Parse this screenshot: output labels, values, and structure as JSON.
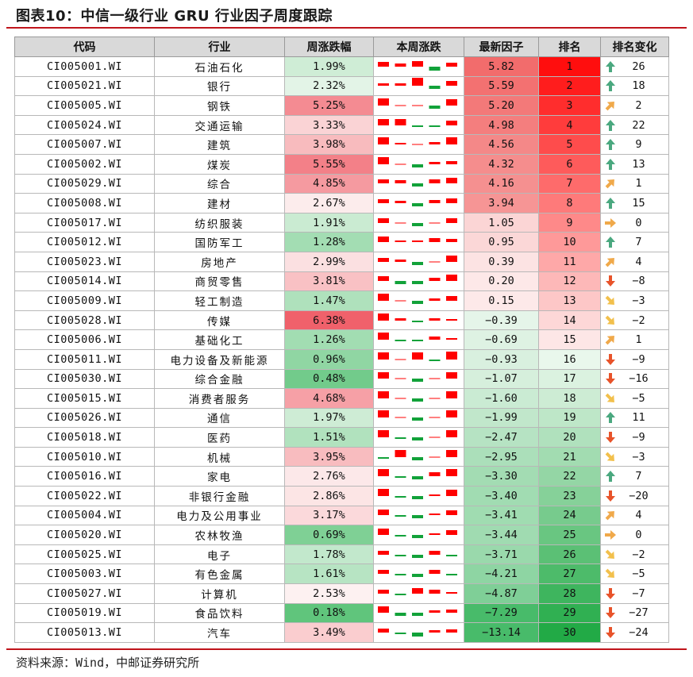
{
  "title": "图表10：中信一级行业 GRU 行业因子周度跟踪",
  "source": "资料来源：Wind，中邮证券研究所",
  "headers": [
    "代码",
    "行业",
    "周涨跌幅",
    "本周涨跌",
    "最新因子",
    "排名",
    "排名变化"
  ],
  "rows": [
    {
      "code": "CI005001.WI",
      "industry": "石油石化",
      "weekly_return": "1.99%",
      "weekly_pct": 1.99,
      "daily": [
        0.6,
        0.4,
        0.7,
        -0.5,
        0.5
      ],
      "factor": "5.82",
      "factor_val": 5.82,
      "rank": "1",
      "rank_num": 1,
      "trend": "up",
      "change": "26"
    },
    {
      "code": "CI005021.WI",
      "industry": "银行",
      "weekly_return": "2.32%",
      "weekly_pct": 2.32,
      "daily": [
        0.3,
        0.3,
        1.0,
        -0.4,
        0.6
      ],
      "factor": "5.59",
      "factor_val": 5.59,
      "rank": "2",
      "rank_num": 2,
      "trend": "up",
      "change": "18"
    },
    {
      "code": "CI005005.WI",
      "industry": "钢铁",
      "weekly_return": "5.25%",
      "weekly_pct": 5.25,
      "daily": [
        0.9,
        0.0,
        0.0,
        -0.4,
        0.8
      ],
      "factor": "5.20",
      "factor_val": 5.2,
      "rank": "3",
      "rank_num": 3,
      "trend": "up-right",
      "change": "2"
    },
    {
      "code": "CI005024.WI",
      "industry": "交通运输",
      "weekly_return": "3.33%",
      "weekly_pct": 3.33,
      "daily": [
        0.8,
        0.8,
        -0.2,
        -0.2,
        0.6
      ],
      "factor": "4.98",
      "factor_val": 4.98,
      "rank": "4",
      "rank_num": 4,
      "trend": "up",
      "change": "22"
    },
    {
      "code": "CI005007.WI",
      "industry": "建筑",
      "weekly_return": "3.98%",
      "weekly_pct": 3.98,
      "daily": [
        0.9,
        0.1,
        0.0,
        0.3,
        0.9
      ],
      "factor": "4.56",
      "factor_val": 4.56,
      "rank": "5",
      "rank_num": 5,
      "trend": "up",
      "change": "9"
    },
    {
      "code": "CI005002.WI",
      "industry": "煤炭",
      "weekly_return": "5.55%",
      "weekly_pct": 5.55,
      "daily": [
        0.9,
        0.0,
        -0.4,
        0.3,
        0.4
      ],
      "factor": "4.32",
      "factor_val": 4.32,
      "rank": "6",
      "rank_num": 6,
      "trend": "up",
      "change": "13"
    },
    {
      "code": "CI005029.WI",
      "industry": "综合",
      "weekly_return": "4.85%",
      "weekly_pct": 4.85,
      "daily": [
        0.5,
        0.4,
        -0.4,
        0.5,
        0.7
      ],
      "factor": "4.16",
      "factor_val": 4.16,
      "rank": "7",
      "rank_num": 7,
      "trend": "up-right",
      "change": "1"
    },
    {
      "code": "CI005008.WI",
      "industry": "建材",
      "weekly_return": "2.67%",
      "weekly_pct": 2.67,
      "daily": [
        0.5,
        0.3,
        -0.4,
        0.4,
        0.6
      ],
      "factor": "3.94",
      "factor_val": 3.94,
      "rank": "8",
      "rank_num": 8,
      "trend": "up",
      "change": "15"
    },
    {
      "code": "CI005017.WI",
      "industry": "纺织服装",
      "weekly_return": "1.91%",
      "weekly_pct": 1.91,
      "daily": [
        0.6,
        0.0,
        -0.4,
        0.0,
        0.6
      ],
      "factor": "1.05",
      "factor_val": 1.05,
      "rank": "9",
      "rank_num": 9,
      "trend": "right",
      "change": "0"
    },
    {
      "code": "CI005012.WI",
      "industry": "国防军工",
      "weekly_return": "1.28%",
      "weekly_pct": 1.28,
      "daily": [
        0.7,
        0.1,
        0.1,
        0.5,
        0.4
      ],
      "factor": "0.95",
      "factor_val": 0.95,
      "rank": "10",
      "rank_num": 10,
      "trend": "up",
      "change": "7"
    },
    {
      "code": "CI005023.WI",
      "industry": "房地产",
      "weekly_return": "2.99%",
      "weekly_pct": 2.99,
      "daily": [
        0.5,
        0.3,
        -0.4,
        0.0,
        0.8
      ],
      "factor": "0.39",
      "factor_val": 0.39,
      "rank": "11",
      "rank_num": 11,
      "trend": "up-right",
      "change": "4"
    },
    {
      "code": "CI005014.WI",
      "industry": "商贸零售",
      "weekly_return": "3.81%",
      "weekly_pct": 3.81,
      "daily": [
        0.6,
        -0.4,
        -0.4,
        0.4,
        0.8
      ],
      "factor": "0.20",
      "factor_val": 0.2,
      "rank": "12",
      "rank_num": 12,
      "trend": "down",
      "change": "−8"
    },
    {
      "code": "CI005009.WI",
      "industry": "轻工制造",
      "weekly_return": "1.47%",
      "weekly_pct": 1.47,
      "daily": [
        0.9,
        0.0,
        -0.4,
        0.3,
        0.6
      ],
      "factor": "0.15",
      "factor_val": 0.15,
      "rank": "13",
      "rank_num": 13,
      "trend": "down-right",
      "change": "−3"
    },
    {
      "code": "CI005028.WI",
      "industry": "传媒",
      "weekly_return": "6.38%",
      "weekly_pct": 6.38,
      "daily": [
        0.9,
        0.3,
        -0.2,
        0.3,
        0.2
      ],
      "factor": "−0.39",
      "factor_val": -0.39,
      "rank": "14",
      "rank_num": 14,
      "trend": "down-right",
      "change": "−2"
    },
    {
      "code": "CI005006.WI",
      "industry": "基础化工",
      "weekly_return": "1.26%",
      "weekly_pct": 1.26,
      "daily": [
        0.9,
        -0.2,
        -0.2,
        0.4,
        0.2
      ],
      "factor": "−0.69",
      "factor_val": -0.69,
      "rank": "15",
      "rank_num": 15,
      "trend": "up-right",
      "change": "1"
    },
    {
      "code": "CI005011.WI",
      "industry": "电力设备及新能源",
      "weekly_return": "0.96%",
      "weekly_pct": 0.96,
      "daily": [
        0.9,
        0.0,
        0.9,
        -0.2,
        1.0
      ],
      "factor": "−0.93",
      "factor_val": -0.93,
      "rank": "16",
      "rank_num": 16,
      "trend": "down",
      "change": "−9"
    },
    {
      "code": "CI005030.WI",
      "industry": "综合金融",
      "weekly_return": "0.48%",
      "weekly_pct": 0.48,
      "daily": [
        0.8,
        0.0,
        -0.4,
        0.0,
        0.8
      ],
      "factor": "−1.07",
      "factor_val": -1.07,
      "rank": "17",
      "rank_num": 17,
      "trend": "down",
      "change": "−16"
    },
    {
      "code": "CI005015.WI",
      "industry": "消费者服务",
      "weekly_return": "4.68%",
      "weekly_pct": 4.68,
      "daily": [
        0.9,
        0.0,
        -0.4,
        0.0,
        0.9
      ],
      "factor": "−1.60",
      "factor_val": -1.6,
      "rank": "18",
      "rank_num": 18,
      "trend": "down-right",
      "change": "−5"
    },
    {
      "code": "CI005026.WI",
      "industry": "通信",
      "weekly_return": "1.97%",
      "weekly_pct": 1.97,
      "daily": [
        0.9,
        0.0,
        -0.4,
        0.0,
        0.9
      ],
      "factor": "−1.99",
      "factor_val": -1.99,
      "rank": "19",
      "rank_num": 19,
      "trend": "up",
      "change": "11"
    },
    {
      "code": "CI005018.WI",
      "industry": "医药",
      "weekly_return": "1.51%",
      "weekly_pct": 1.51,
      "daily": [
        0.9,
        -0.2,
        -0.4,
        0.0,
        0.9
      ],
      "factor": "−2.47",
      "factor_val": -2.47,
      "rank": "20",
      "rank_num": 20,
      "trend": "down",
      "change": "−9"
    },
    {
      "code": "CI005010.WI",
      "industry": "机械",
      "weekly_return": "3.95%",
      "weekly_pct": 3.95,
      "daily": [
        -0.2,
        0.9,
        -0.4,
        0.0,
        0.9
      ],
      "factor": "−2.95",
      "factor_val": -2.95,
      "rank": "21",
      "rank_num": 21,
      "trend": "down-right",
      "change": "−3"
    },
    {
      "code": "CI005016.WI",
      "industry": "家电",
      "weekly_return": "2.76%",
      "weekly_pct": 2.76,
      "daily": [
        0.9,
        -0.2,
        -0.4,
        0.5,
        0.9
      ],
      "factor": "−3.30",
      "factor_val": -3.3,
      "rank": "22",
      "rank_num": 22,
      "trend": "up",
      "change": "7"
    },
    {
      "code": "CI005022.WI",
      "industry": "非银行金融",
      "weekly_return": "2.86%",
      "weekly_pct": 2.86,
      "daily": [
        0.9,
        -0.2,
        -0.4,
        0.2,
        0.8
      ],
      "factor": "−3.40",
      "factor_val": -3.4,
      "rank": "23",
      "rank_num": 23,
      "trend": "down",
      "change": "−20"
    },
    {
      "code": "CI005004.WI",
      "industry": "电力及公用事业",
      "weekly_return": "3.17%",
      "weekly_pct": 3.17,
      "daily": [
        0.7,
        -0.2,
        -0.4,
        0.2,
        0.6
      ],
      "factor": "−3.41",
      "factor_val": -3.41,
      "rank": "24",
      "rank_num": 24,
      "trend": "up-right",
      "change": "4"
    },
    {
      "code": "CI005020.WI",
      "industry": "农林牧渔",
      "weekly_return": "0.69%",
      "weekly_pct": 0.69,
      "daily": [
        0.8,
        -0.2,
        -0.4,
        0.2,
        0.6
      ],
      "factor": "−3.44",
      "factor_val": -3.44,
      "rank": "25",
      "rank_num": 25,
      "trend": "right",
      "change": "0"
    },
    {
      "code": "CI005025.WI",
      "industry": "电子",
      "weekly_return": "1.78%",
      "weekly_pct": 1.78,
      "daily": [
        0.5,
        -0.2,
        -0.4,
        0.5,
        -0.2
      ],
      "factor": "−3.71",
      "factor_val": -3.71,
      "rank": "26",
      "rank_num": 26,
      "trend": "down-right",
      "change": "−2"
    },
    {
      "code": "CI005003.WI",
      "industry": "有色金属",
      "weekly_return": "1.61%",
      "weekly_pct": 1.61,
      "daily": [
        0.5,
        -0.2,
        -0.4,
        0.5,
        -0.2
      ],
      "factor": "−4.21",
      "factor_val": -4.21,
      "rank": "27",
      "rank_num": 27,
      "trend": "down-right",
      "change": "−5"
    },
    {
      "code": "CI005027.WI",
      "industry": "计算机",
      "weekly_return": "2.53%",
      "weekly_pct": 2.53,
      "daily": [
        0.5,
        -0.2,
        0.7,
        0.5,
        0.2
      ],
      "factor": "−4.87",
      "factor_val": -4.87,
      "rank": "28",
      "rank_num": 28,
      "trend": "down",
      "change": "−7"
    },
    {
      "code": "CI005019.WI",
      "industry": "食品饮料",
      "weekly_return": "0.18%",
      "weekly_pct": 0.18,
      "daily": [
        0.8,
        -0.4,
        -0.4,
        0.3,
        0.4
      ],
      "factor": "−7.29",
      "factor_val": -7.29,
      "rank": "29",
      "rank_num": 29,
      "trend": "down",
      "change": "−27"
    },
    {
      "code": "CI005013.WI",
      "industry": "汽车",
      "weekly_return": "3.49%",
      "weekly_pct": 3.49,
      "daily": [
        0.5,
        -0.2,
        -0.5,
        0.3,
        0.4
      ],
      "factor": "−13.14",
      "factor_val": -13.14,
      "rank": "30",
      "rank_num": 30,
      "trend": "down",
      "change": "−24"
    }
  ],
  "colors": {
    "up_bar": "#ff0000",
    "down_bar": "#12a23a",
    "arrow_up": "#4aa87f",
    "arrow_down": "#e8532a",
    "arrow_diag_up": "#f0a94a",
    "arrow_diag_down": "#f2c04c",
    "header_bg": "#d9d9d9",
    "title_rule": "#c0141b"
  }
}
